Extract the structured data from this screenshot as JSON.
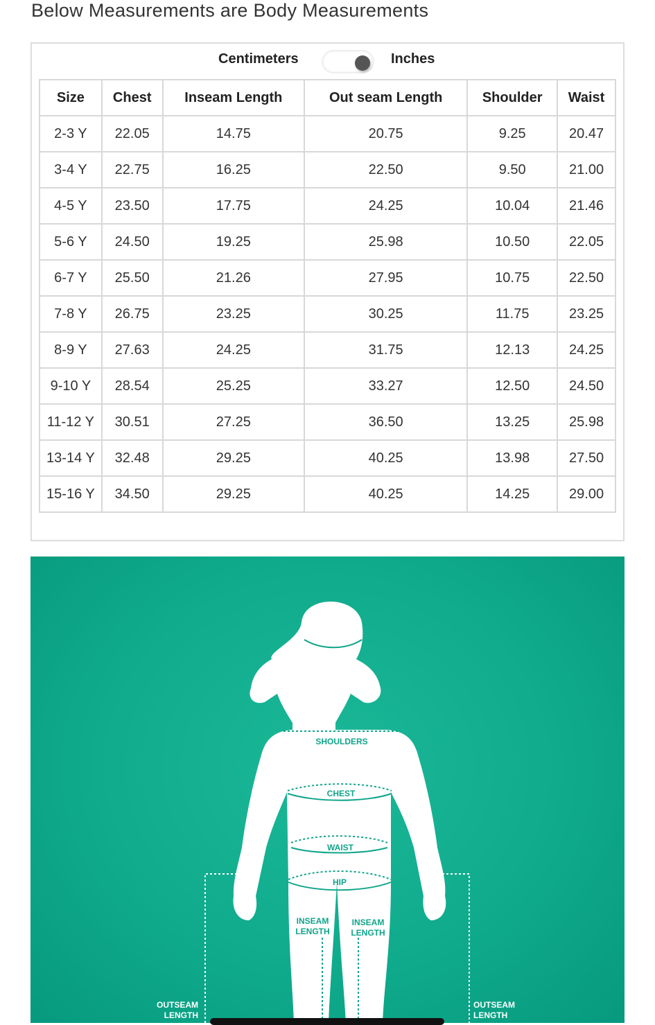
{
  "title": "Below Measurements are Body Measurements",
  "units": {
    "left": "Centimeters",
    "right": "Inches",
    "selected": "Inches"
  },
  "table": {
    "headers": [
      "Size",
      "Chest",
      "Inseam Length",
      "Out seam Length",
      "Shoulder",
      "Waist"
    ],
    "rows": [
      [
        "2-3 Y",
        "22.05",
        "14.75",
        "20.75",
        "9.25",
        "20.47"
      ],
      [
        "3-4 Y",
        "22.75",
        "16.25",
        "22.50",
        "9.50",
        "21.00"
      ],
      [
        "4-5 Y",
        "23.50",
        "17.75",
        "24.25",
        "10.04",
        "21.46"
      ],
      [
        "5-6 Y",
        "24.50",
        "19.25",
        "25.98",
        "10.50",
        "22.05"
      ],
      [
        "6-7 Y",
        "25.50",
        "21.26",
        "27.95",
        "10.75",
        "22.50"
      ],
      [
        "7-8 Y",
        "26.75",
        "23.25",
        "30.25",
        "11.75",
        "23.25"
      ],
      [
        "8-9 Y",
        "27.63",
        "24.25",
        "31.75",
        "12.13",
        "24.25"
      ],
      [
        "9-10 Y",
        "28.54",
        "25.25",
        "33.27",
        "12.50",
        "24.50"
      ],
      [
        "11-12 Y",
        "30.51",
        "27.25",
        "36.50",
        "13.25",
        "25.98"
      ],
      [
        "13-14 Y",
        "32.48",
        "29.25",
        "40.25",
        "13.98",
        "27.50"
      ],
      [
        "15-16 Y",
        "34.50",
        "29.25",
        "40.25",
        "14.25",
        "29.00"
      ]
    ]
  },
  "diagram": {
    "shoulders": "SHOULDERS",
    "chest": "CHEST",
    "waist": "WAIST",
    "hip": "HIP",
    "inseam1": "INSEAM",
    "inseam2": "LENGTH",
    "outseam1": "OUTSEAM",
    "outseam2": "LENGTH",
    "bg": "#0fab8c",
    "accent": "#0fa58a"
  }
}
